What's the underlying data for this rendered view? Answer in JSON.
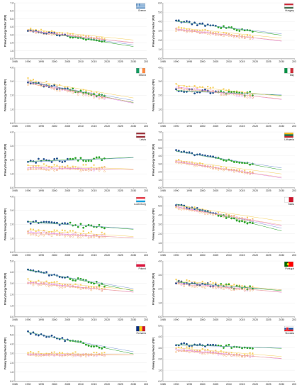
{
  "x_ticks": [
    "1985",
    "1990",
    "1995",
    "2000",
    "2005",
    "2010",
    "2015",
    "2020",
    "2025",
    "2030",
    "2035"
  ],
  "y_ticks": [
    "0.0",
    "1.0",
    "2.0",
    "3.0",
    "4.0",
    "5.0",
    "6.0",
    "7.0"
  ],
  "ylabel": "Primary Energy Factor (PEF)",
  "colors": {
    "blue": "#1f4e8c",
    "green": "#2aa32a",
    "orange": "#f0a050",
    "pink": "#e080e0",
    "yellow": "#f5d060",
    "gray": "#909090"
  },
  "chart_data": [
    {
      "type": "scatter",
      "country": "Greece",
      "flag_colors": [
        "#0d5eaf",
        "#ffffff"
      ],
      "xlim": [
        1985,
        2035
      ],
      "ylim": [
        0,
        7
      ],
      "y_ticks": [
        0,
        1,
        2,
        3,
        4,
        5,
        6,
        7
      ],
      "main_start": 3.6,
      "main_end": 2.1,
      "fade_start": 3.55,
      "fade_end": 2.4
    },
    {
      "type": "scatter",
      "country": "Hungary",
      "flag_colors": [
        "#ce2939",
        "#ffffff",
        "#477050"
      ],
      "xlim": [
        1985,
        2035
      ],
      "ylim": [
        0,
        6
      ],
      "y_ticks": [
        0,
        1,
        2,
        3,
        4,
        5,
        6
      ],
      "main_start": 4.05,
      "main_end": 2.95,
      "fade_start": 3.2,
      "fade_end": 2.25
    },
    {
      "type": "scatter",
      "country": "Ireland",
      "flag_colors": [
        "#169b62",
        "#ffffff",
        "#ff883e"
      ],
      "xlim": [
        1985,
        2035
      ],
      "ylim": [
        0,
        4
      ],
      "y_ticks": [
        0,
        1,
        2,
        3,
        4
      ],
      "main_start": 3.0,
      "main_end": 1.9,
      "fade_start": 2.95,
      "fade_end": 1.85
    },
    {
      "type": "scatter",
      "country": "Italy",
      "flag_colors": [
        "#009246",
        "#ffffff",
        "#ce2b37"
      ],
      "xlim": [
        1985,
        2035
      ],
      "ylim": [
        0,
        4
      ],
      "y_ticks": [
        0,
        1,
        2,
        3,
        4
      ],
      "main_start": 2.35,
      "main_end": 2.1,
      "fade_start": 2.6,
      "fade_end": 1.95
    },
    {
      "type": "scatter",
      "country": "Latvia",
      "flag_colors": [
        "#9e3039",
        "#ffffff",
        "#9e3039"
      ],
      "xlim": [
        1985,
        2035
      ],
      "ylim": [
        0,
        4
      ],
      "y_ticks": [
        0,
        1,
        2,
        3,
        4
      ],
      "main_start": 1.9,
      "main_end": 2.1,
      "fade_start": 1.45,
      "fade_end": 1.35
    },
    {
      "type": "scatter",
      "country": "Lithuania",
      "flag_colors": [
        "#fdb913",
        "#006a44",
        "#c1272d"
      ],
      "xlim": [
        1985,
        2035
      ],
      "ylim": [
        0,
        7
      ],
      "y_ticks": [
        0,
        1,
        2,
        3,
        4,
        5,
        6,
        7
      ],
      "main_start": 4.6,
      "main_end": 2.9,
      "fade_start": 3.3,
      "fade_end": 1.8
    },
    {
      "type": "scatter",
      "country": "Luxemburg",
      "flag_colors": [
        "#ed2939",
        "#ffffff",
        "#00a1de"
      ],
      "xlim": [
        1985,
        2035
      ],
      "ylim": [
        0,
        4
      ],
      "y_ticks": [
        0,
        1,
        2,
        3,
        4
      ],
      "main_start": 2.2,
      "main_end": 1.8,
      "fade_start": 1.45,
      "fade_end": 1.15
    },
    {
      "type": "scatter",
      "country": "Malta",
      "flag_colors": [
        "#ffffff",
        "#cf142b"
      ],
      "xlim": [
        1985,
        2035
      ],
      "ylim": [
        0,
        6
      ],
      "y_ticks": [
        0,
        1,
        2,
        3,
        4,
        5,
        6
      ],
      "main_start": 5.2,
      "main_end": 3.1,
      "fade_start": 4.9,
      "fade_end": 3.4
    },
    {
      "type": "scatter",
      "country": "Poland",
      "flag_colors": [
        "#ffffff",
        "#dc143c"
      ],
      "xlim": [
        1985,
        2035
      ],
      "ylim": [
        0,
        5
      ],
      "y_ticks": [
        0,
        1,
        2,
        3,
        4,
        5
      ],
      "main_start": 4.2,
      "main_end": 2.85,
      "fade_start": 3.1,
      "fade_end": 2.45
    },
    {
      "type": "scatter",
      "country": "Portugal",
      "flag_colors": [
        "#006600",
        "#ff0000"
      ],
      "xlim": [
        1985,
        2035
      ],
      "ylim": [
        0,
        4
      ],
      "y_ticks": [
        0,
        1,
        2,
        3,
        4
      ],
      "main_start": 2.5,
      "main_end": 2.05,
      "fade_start": 2.45,
      "fade_end": 1.95
    },
    {
      "type": "scatter",
      "country": "Romania",
      "flag_colors": [
        "#002b7f",
        "#fcd116",
        "#ce1126"
      ],
      "xlim": [
        1985,
        2035
      ],
      "ylim": [
        0,
        6
      ],
      "y_ticks": [
        0,
        1,
        2,
        3,
        4,
        5,
        6
      ],
      "main_start": 5.3,
      "main_end": 3.6,
      "fade_start": 2.9,
      "fade_end": 2.85
    },
    {
      "type": "scatter",
      "country": "Slovakia",
      "flag_colors": [
        "#ffffff",
        "#0b4ea2",
        "#ee1c25"
      ],
      "xlim": [
        1985,
        2035
      ],
      "ylim": [
        0,
        5
      ],
      "y_ticks": [
        0,
        1,
        2,
        3,
        4,
        5
      ],
      "main_start": 3.3,
      "main_end": 3.05,
      "fade_start": 2.85,
      "fade_end": 2.25
    }
  ]
}
